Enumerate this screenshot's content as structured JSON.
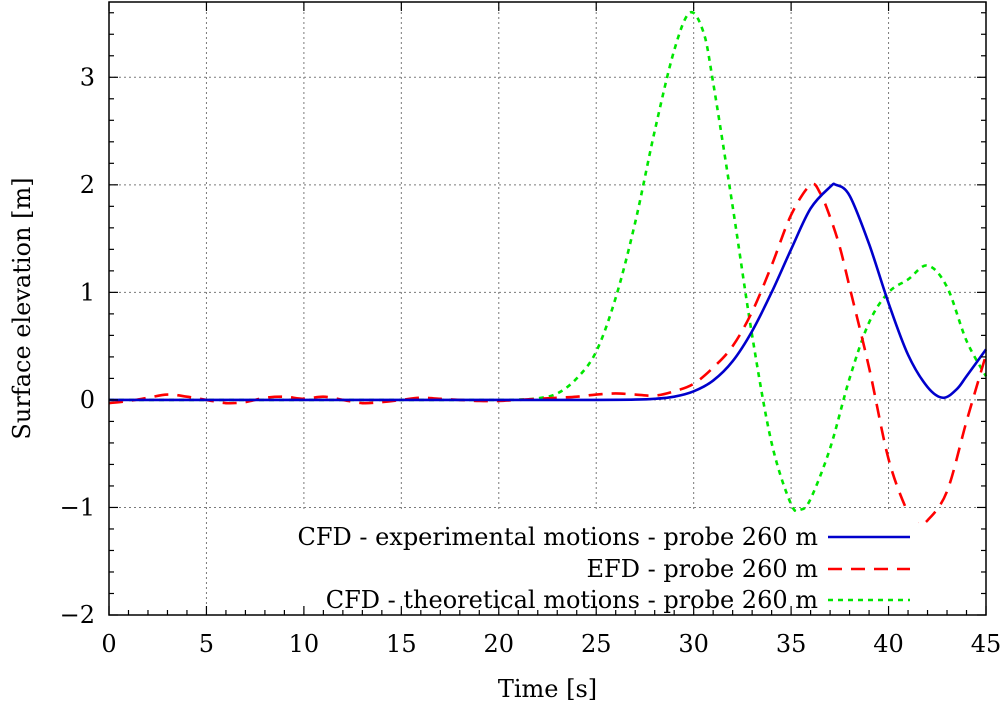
{
  "chart_data": {
    "type": "line",
    "xlabel": "Time [s]",
    "ylabel": "Surface elevation [m]",
    "xlim": [
      0,
      45
    ],
    "ylim": [
      -2,
      3.7
    ],
    "xticks": [
      0,
      5,
      10,
      15,
      20,
      25,
      30,
      35,
      40,
      45
    ],
    "yticks": [
      -2,
      -1,
      0,
      1,
      2,
      3
    ],
    "xtick_labels": [
      "0",
      "5",
      "10",
      "15",
      "20",
      "25",
      "30",
      "35",
      "40",
      "45"
    ],
    "ytick_labels": [
      "−2",
      "−1",
      "0",
      "1",
      "2",
      "3"
    ],
    "grid": true,
    "legend_position": "bottom-right",
    "series": [
      {
        "name": "CFD - experimental motions - probe 260 m",
        "color": "#0000cc",
        "style": "solid",
        "x": [
          0,
          5,
          10,
          15,
          20,
          25,
          27,
          28,
          29,
          30,
          31,
          32,
          33,
          34,
          35,
          36,
          37,
          37.3,
          38,
          39,
          40,
          41,
          42,
          42.8,
          43.5,
          44,
          45
        ],
        "y": [
          0,
          0,
          0,
          0,
          0,
          0,
          0.003,
          0.01,
          0.03,
          0.08,
          0.18,
          0.36,
          0.64,
          1.0,
          1.4,
          1.78,
          1.98,
          2.0,
          1.9,
          1.45,
          0.9,
          0.42,
          0.12,
          0.02,
          0.1,
          0.22,
          0.47
        ]
      },
      {
        "name": "EFD - probe 260 m",
        "color": "#ff0000",
        "style": "dashed",
        "x": [
          0,
          1,
          2,
          3,
          4,
          5,
          6,
          7,
          8,
          9,
          10,
          11,
          12,
          13,
          14,
          15,
          16,
          17,
          18,
          19,
          20,
          21,
          22,
          23,
          24,
          25,
          26,
          27,
          28,
          29,
          30,
          31,
          32,
          33,
          34,
          35,
          36,
          36.5,
          37,
          37.5,
          38,
          39,
          40,
          41,
          41.5,
          42,
          43,
          44,
          45
        ],
        "y": [
          -0.03,
          -0.01,
          0.02,
          0.05,
          0.03,
          0.0,
          -0.03,
          -0.02,
          0.02,
          0.03,
          0.01,
          0.03,
          0.0,
          -0.03,
          -0.02,
          0.0,
          0.02,
          0.01,
          0.0,
          -0.01,
          -0.01,
          0.0,
          0.01,
          0.02,
          0.03,
          0.05,
          0.06,
          0.05,
          0.04,
          0.08,
          0.15,
          0.3,
          0.5,
          0.82,
          1.25,
          1.72,
          2.0,
          1.92,
          1.7,
          1.42,
          1.05,
          0.3,
          -0.55,
          -1.05,
          -1.15,
          -1.12,
          -0.85,
          -0.2,
          0.42
        ]
      },
      {
        "name": "CFD - theoretical motions - probe 260 m",
        "color": "#00e600",
        "style": "dotted",
        "x": [
          0,
          5,
          10,
          15,
          20,
          21,
          22,
          23,
          24,
          25,
          26,
          27,
          28,
          29,
          29.8,
          30.5,
          31,
          32,
          33,
          34,
          35,
          35.5,
          36,
          37,
          38,
          39,
          40,
          41,
          42,
          43,
          44,
          45
        ],
        "y": [
          0,
          0,
          0,
          0,
          0,
          0.003,
          0.015,
          0.06,
          0.2,
          0.45,
          0.95,
          1.65,
          2.5,
          3.25,
          3.6,
          3.42,
          2.95,
          1.8,
          0.6,
          -0.4,
          -0.97,
          -1.02,
          -0.92,
          -0.45,
          0.2,
          0.72,
          1.0,
          1.12,
          1.25,
          1.05,
          0.55,
          0.22
        ]
      }
    ]
  }
}
